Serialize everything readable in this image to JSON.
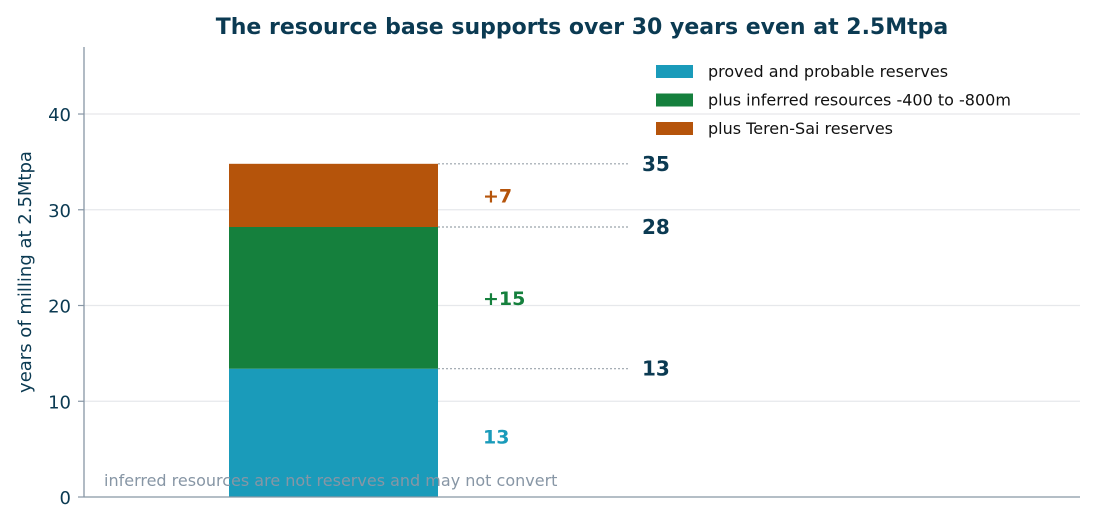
{
  "chart_data": {
    "type": "bar",
    "stacked": true,
    "title": "The resource base supports over 30 years even at 2.5Mtpa",
    "ylabel": "years of milling at 2.5Mtpa",
    "xlabel": "",
    "ylim": [
      0,
      47
    ],
    "yticks": [
      0,
      10,
      20,
      30,
      40
    ],
    "grid": true,
    "legend_position": "top-right",
    "series": [
      {
        "name": "proved and probable reserves",
        "value": 13.4,
        "label": "13",
        "color": "#1a9bba"
      },
      {
        "name": "plus inferred resources -400 to -800m",
        "value": 14.8,
        "label": "+15",
        "color": "#15803d"
      },
      {
        "name": "plus Teren-Sai reserves",
        "value": 6.6,
        "label": "+7",
        "color": "#b5540b"
      }
    ],
    "totals": [
      {
        "value": 13.4,
        "label": "13"
      },
      {
        "value": 28.2,
        "label": "28"
      },
      {
        "value": 34.8,
        "label": "35"
      }
    ],
    "note": "inferred resources are not reserves and may not convert"
  },
  "colors": {
    "title": "#0b3a52",
    "axis": "#8796a5",
    "grid": "#e6e8eb",
    "total_label": "#0b3a52",
    "note": "#8796a5"
  }
}
